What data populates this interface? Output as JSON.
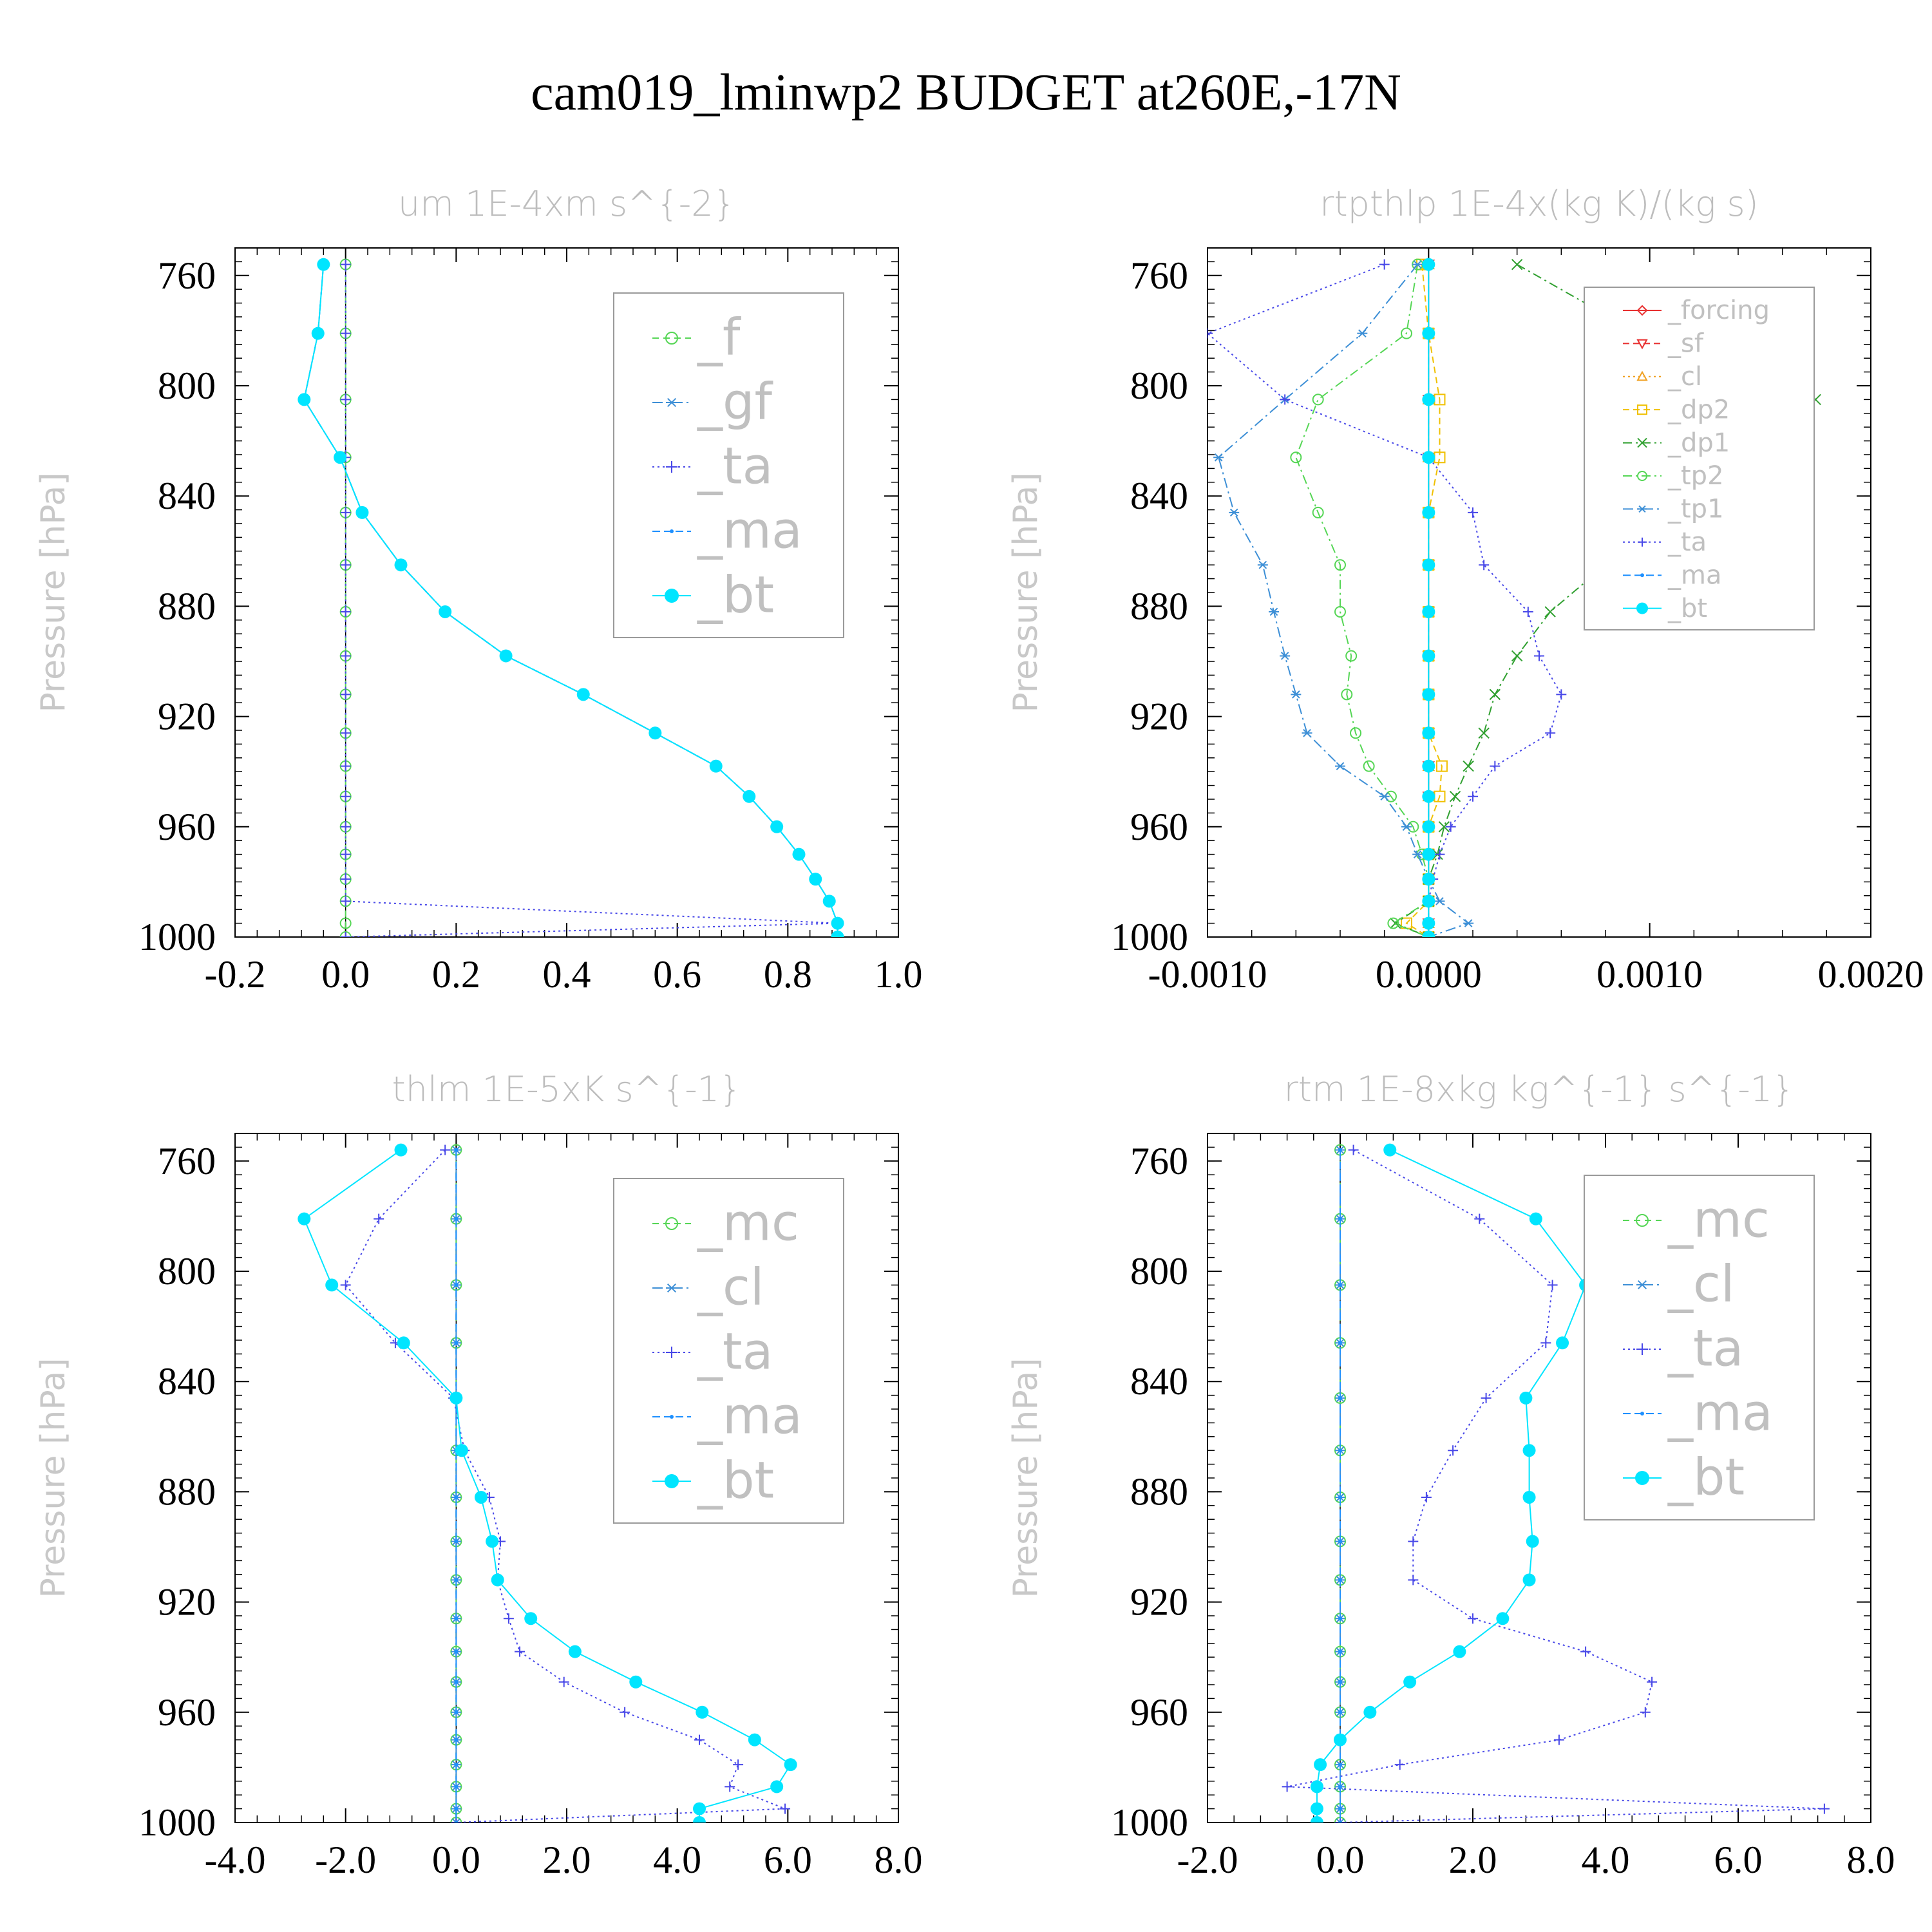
{
  "title": "cam019_lminwp2  BUDGET at260E,-17N",
  "chart_data": [
    {
      "type": "line",
      "title": "um   1E-4xm s^{-2}",
      "ylabel": "Pressure [hPa]",
      "xlim": [
        -0.2,
        1.0
      ],
      "xticks": [
        -0.2,
        0.0,
        0.2,
        0.4,
        0.6,
        0.8,
        1.0
      ],
      "xtick_labels": [
        "-0.2",
        "0.0",
        "0.2",
        "0.4",
        "0.6",
        "0.8",
        "1.0"
      ],
      "ylim": [
        750,
        1000
      ],
      "yticks": [
        760,
        800,
        840,
        880,
        920,
        960,
        1000
      ],
      "y": [
        756,
        781,
        805,
        826,
        846,
        865,
        882,
        898,
        912,
        926,
        938,
        949,
        960,
        970,
        979,
        987,
        995,
        1000
      ],
      "legend": {
        "entries": 5,
        "font_px": 78
      },
      "series": [
        {
          "name": "_f",
          "color": "#55d655",
          "marker": "circle-open",
          "dash": "10,7",
          "values": [
            0,
            0,
            0,
            0,
            0,
            0,
            0,
            0,
            0,
            0,
            0,
            0,
            0,
            0,
            0,
            0,
            0,
            0
          ]
        },
        {
          "name": "_gf",
          "color": "#3d8fd6",
          "marker": "asterisk",
          "dash": "16,6,3,6",
          "values": [
            -0.04,
            -0.05,
            -0.075,
            -0.01,
            0.03,
            0.1,
            0.18,
            0.29,
            0.43,
            0.56,
            0.67,
            0.73,
            0.78,
            0.82,
            0.85,
            0.875,
            0.89,
            0.89
          ]
        },
        {
          "name": "_ta",
          "color": "#4848e8",
          "marker": "plus",
          "dash": "3,5",
          "values": [
            0,
            0,
            0,
            0,
            0,
            0,
            0,
            0,
            0,
            0,
            0,
            0,
            0,
            0,
            0,
            0,
            0.89,
            0
          ]
        },
        {
          "name": "_ma",
          "color": "#1e90ff",
          "marker": "dot",
          "dash": "12,6",
          "values": [
            -0.04,
            -0.05,
            -0.075,
            -0.01,
            0.03,
            0.1,
            0.18,
            0.29,
            0.43,
            0.56,
            0.67,
            0.73,
            0.78,
            0.82,
            0.85,
            0.875,
            0.89,
            0.89
          ]
        },
        {
          "name": "_bt",
          "color": "#00e5ff",
          "marker": "disc",
          "dash": "",
          "values": [
            -0.04,
            -0.05,
            -0.075,
            -0.01,
            0.03,
            0.1,
            0.18,
            0.29,
            0.43,
            0.56,
            0.67,
            0.73,
            0.78,
            0.82,
            0.85,
            0.875,
            0.89,
            0.89
          ]
        }
      ]
    },
    {
      "type": "line",
      "title": "rtpthlp   1E-4x(kg K)/(kg s)",
      "ylabel": "Pressure [hPa]",
      "xlim": [
        -0.001,
        0.002
      ],
      "xticks": [
        -0.001,
        0.0,
        0.001,
        0.002
      ],
      "xtick_labels": [
        "-0.0010",
        "0.0000",
        "0.0010",
        "0.0020"
      ],
      "ylim": [
        750,
        1000
      ],
      "yticks": [
        760,
        800,
        840,
        880,
        920,
        960,
        1000
      ],
      "y": [
        756,
        781,
        805,
        826,
        846,
        865,
        882,
        898,
        912,
        926,
        938,
        949,
        960,
        970,
        979,
        987,
        995,
        1000
      ],
      "legend": {
        "entries": 10,
        "font_px": 40
      },
      "series": [
        {
          "name": "_forcing",
          "color": "#e83030",
          "marker": "diamond-open",
          "dash": "",
          "values": [
            0,
            0,
            0,
            0,
            0,
            0,
            0,
            0,
            0,
            0,
            0,
            0,
            0,
            0,
            0,
            0,
            0,
            0
          ]
        },
        {
          "name": "_sf",
          "color": "#e83030",
          "marker": "triangle-down-open",
          "dash": "10,6",
          "values": [
            0,
            0,
            0,
            0,
            0,
            0,
            0,
            0,
            0,
            0,
            0,
            0,
            0,
            0,
            0,
            0,
            0,
            0
          ]
        },
        {
          "name": "_cl",
          "color": "#f0a020",
          "marker": "triangle-open",
          "dash": "3,5",
          "values": [
            0,
            0,
            0,
            0,
            0,
            0,
            0,
            0,
            0,
            0,
            0,
            0,
            0,
            0,
            0,
            0,
            0,
            0
          ]
        },
        {
          "name": "_dp2",
          "color": "#f0c000",
          "marker": "square-open",
          "dash": "10,6",
          "values": [
            -3e-05,
            0,
            5e-05,
            5e-05,
            0,
            0,
            0,
            0,
            0,
            0,
            6e-05,
            5e-05,
            0,
            0,
            0,
            0,
            -0.0001,
            0
          ]
        },
        {
          "name": "_dp1",
          "color": "#30a030",
          "marker": "x",
          "dash": "14,6,3,6",
          "values": [
            0.0004,
            0.00095,
            0.00175,
            0.00155,
            0.0011,
            0.0008,
            0.00055,
            0.0004,
            0.0003,
            0.00025,
            0.00018,
            0.00012,
            7e-05,
            4e-05,
            0,
            0,
            -0.00015,
            0
          ]
        },
        {
          "name": "_tp2",
          "color": "#55d655",
          "marker": "circle-open",
          "dash": "14,6,3,6",
          "values": [
            -5e-05,
            -0.0001,
            -0.0005,
            -0.0006,
            -0.0005,
            -0.0004,
            -0.0004,
            -0.00035,
            -0.00037,
            -0.00033,
            -0.00027,
            -0.00017,
            -7e-05,
            -3e-05,
            0,
            0,
            -0.00016,
            0
          ]
        },
        {
          "name": "_tp1",
          "color": "#3d8fd6",
          "marker": "asterisk",
          "dash": "16,6,3,6",
          "values": [
            -5e-05,
            -0.0003,
            -0.00065,
            -0.00095,
            -0.00088,
            -0.00075,
            -0.0007,
            -0.00065,
            -0.0006,
            -0.00055,
            -0.0004,
            -0.0002,
            -0.0001,
            -5e-05,
            0,
            5e-05,
            0.00018,
            0
          ]
        },
        {
          "name": "_ta",
          "color": "#4848e8",
          "marker": "plus",
          "dash": "3,5",
          "values": [
            -0.0002,
            -0.001,
            -0.00065,
            0.0,
            0.0002,
            0.00025,
            0.00045,
            0.0005,
            0.0006,
            0.00055,
            0.0003,
            0.0002,
            0.0001,
            5e-05,
            2e-05,
            0,
            0,
            0
          ]
        },
        {
          "name": "_ma",
          "color": "#1e90ff",
          "marker": "dot",
          "dash": "12,6",
          "values": [
            0,
            0,
            0,
            0,
            0,
            0,
            0,
            0,
            0,
            0,
            0,
            0,
            0,
            0,
            0,
            0,
            0,
            0
          ]
        },
        {
          "name": "_bt",
          "color": "#00e5ff",
          "marker": "disc",
          "dash": "",
          "values": [
            0,
            0,
            0,
            0,
            0,
            0,
            0,
            0,
            0,
            0,
            0,
            0,
            0,
            0,
            0,
            0,
            0,
            0
          ]
        }
      ]
    },
    {
      "type": "line",
      "title": "thlm   1E-5xK s^{-1}",
      "ylabel": "Pressure [hPa]",
      "xlim": [
        -4.0,
        8.0
      ],
      "xticks": [
        -4.0,
        -2.0,
        0.0,
        2.0,
        4.0,
        6.0,
        8.0
      ],
      "xtick_labels": [
        "-4.0",
        "-2.0",
        "0.0",
        "2.0",
        "4.0",
        "6.0",
        "8.0"
      ],
      "ylim": [
        750,
        1000
      ],
      "yticks": [
        760,
        800,
        840,
        880,
        920,
        960,
        1000
      ],
      "y": [
        756,
        781,
        805,
        826,
        846,
        865,
        882,
        898,
        912,
        926,
        938,
        949,
        960,
        970,
        979,
        987,
        995,
        1000
      ],
      "legend": {
        "entries": 5,
        "font_px": 78
      },
      "series": [
        {
          "name": "_mc",
          "color": "#55d655",
          "marker": "circle-open",
          "dash": "10,7",
          "values": [
            0,
            0,
            0,
            0,
            0,
            0,
            0,
            0,
            0,
            0,
            0,
            0,
            0,
            0,
            0,
            0,
            0,
            0
          ]
        },
        {
          "name": "_cl",
          "color": "#3d8fd6",
          "marker": "asterisk",
          "dash": "16,6,3,6",
          "values": [
            0,
            0,
            0,
            0,
            0,
            0,
            0,
            0,
            0,
            0,
            0,
            0,
            0,
            0,
            0,
            0,
            0,
            0
          ]
        },
        {
          "name": "_ta",
          "color": "#4848e8",
          "marker": "plus",
          "dash": "3,5",
          "values": [
            -0.2,
            -1.4,
            -2.0,
            -1.1,
            -0.05,
            0.15,
            0.6,
            0.8,
            0.75,
            0.95,
            1.15,
            1.95,
            3.05,
            4.4,
            5.1,
            4.95,
            5.95,
            0
          ]
        },
        {
          "name": "_ma",
          "color": "#1e90ff",
          "marker": "dot",
          "dash": "12,6",
          "values": [
            0,
            0,
            0,
            0,
            0,
            0,
            0,
            0,
            0,
            0,
            0,
            0,
            0,
            0,
            0,
            0,
            0,
            0
          ]
        },
        {
          "name": "_bt",
          "color": "#00e5ff",
          "marker": "disc",
          "dash": "",
          "values": [
            -1.0,
            -2.75,
            -2.25,
            -0.95,
            0.0,
            0.1,
            0.45,
            0.65,
            0.75,
            1.35,
            2.15,
            3.25,
            4.45,
            5.4,
            6.05,
            5.8,
            4.4,
            4.4
          ]
        }
      ]
    },
    {
      "type": "line",
      "title": "rtm   1E-8xkg kg^{-1} s^{-1}",
      "ylabel": "Pressure [hPa]",
      "xlim": [
        -2.0,
        8.0
      ],
      "xticks": [
        -2.0,
        0.0,
        2.0,
        4.0,
        6.0,
        8.0
      ],
      "xtick_labels": [
        "-2.0",
        "0.0",
        "2.0",
        "4.0",
        "6.0",
        "8.0"
      ],
      "ylim": [
        750,
        1000
      ],
      "yticks": [
        760,
        800,
        840,
        880,
        920,
        960,
        1000
      ],
      "y": [
        756,
        781,
        805,
        826,
        846,
        865,
        882,
        898,
        912,
        926,
        938,
        949,
        960,
        970,
        979,
        987,
        995,
        1000
      ],
      "legend": {
        "entries": 5,
        "font_px": 78
      },
      "series": [
        {
          "name": "_mc",
          "color": "#55d655",
          "marker": "circle-open",
          "dash": "10,7",
          "values": [
            0,
            0,
            0,
            0,
            0,
            0,
            0,
            0,
            0,
            0,
            0,
            0,
            0,
            0,
            0,
            0,
            0,
            0
          ]
        },
        {
          "name": "_cl",
          "color": "#3d8fd6",
          "marker": "asterisk",
          "dash": "16,6,3,6",
          "values": [
            0,
            0,
            0,
            0,
            0,
            0,
            0,
            0,
            0,
            0,
            0,
            0,
            0,
            0,
            0,
            0,
            0,
            0
          ]
        },
        {
          "name": "_ta",
          "color": "#4848e8",
          "marker": "plus",
          "dash": "3,5",
          "values": [
            0.2,
            2.1,
            3.2,
            3.1,
            2.2,
            1.7,
            1.3,
            1.1,
            1.1,
            2.0,
            3.7,
            4.7,
            4.6,
            3.3,
            0.9,
            -0.8,
            7.3,
            0
          ]
        },
        {
          "name": "_ma",
          "color": "#1e90ff",
          "marker": "dot",
          "dash": "12,6",
          "values": [
            0,
            0,
            0,
            0,
            0,
            0,
            0,
            0,
            0,
            0,
            0,
            0,
            0,
            0,
            0,
            0,
            0,
            0
          ]
        },
        {
          "name": "_bt",
          "color": "#00e5ff",
          "marker": "disc",
          "dash": "",
          "values": [
            0.75,
            2.95,
            3.7,
            3.35,
            2.8,
            2.85,
            2.85,
            2.9,
            2.85,
            2.45,
            1.8,
            1.05,
            0.45,
            0.0,
            -0.3,
            -0.35,
            -0.35,
            -0.35
          ]
        }
      ]
    }
  ]
}
